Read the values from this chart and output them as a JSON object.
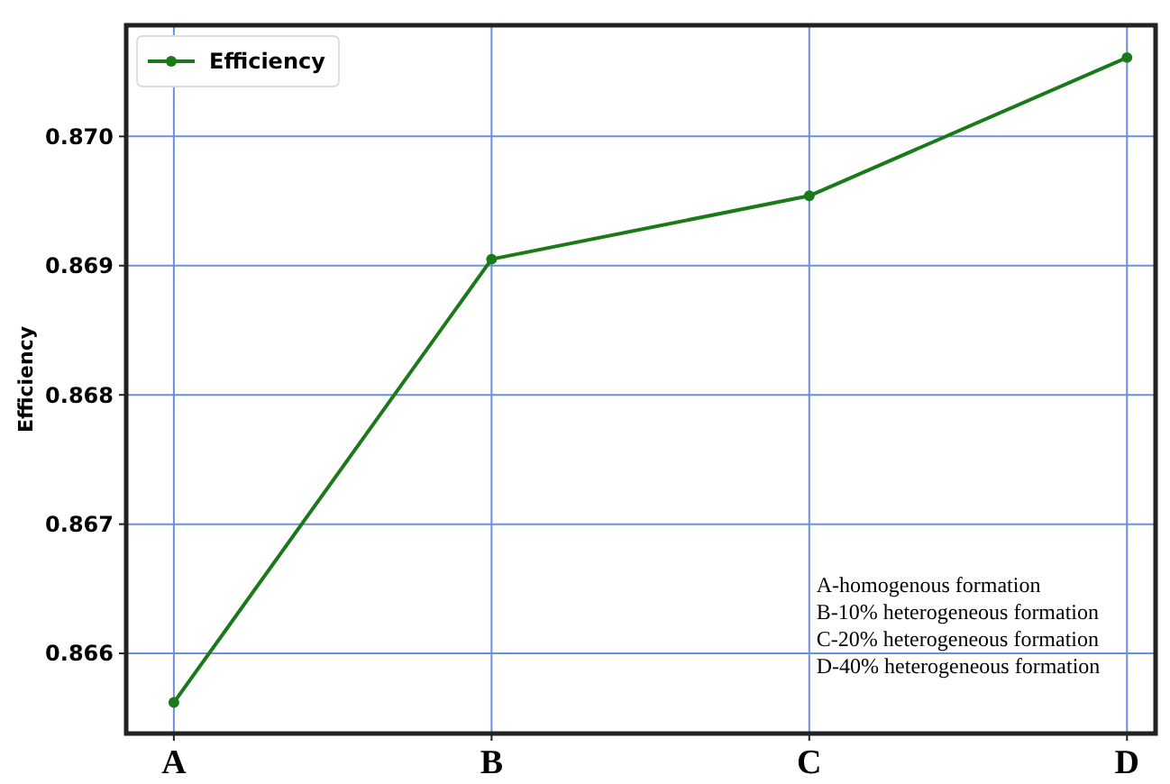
{
  "chart_data": {
    "type": "line",
    "ylabel": "Efficiency",
    "categories": [
      "A",
      "B",
      "C",
      "D"
    ],
    "series": [
      {
        "name": "Efficiency",
        "color": "#1a7a1a",
        "values": [
          0.86562,
          0.86905,
          0.86954,
          0.87061
        ]
      }
    ],
    "ylim": [
      0.86538,
      0.87086
    ],
    "yticks": [
      {
        "value": 0.866,
        "label": "0.866"
      },
      {
        "value": 0.867,
        "label": "0.867"
      },
      {
        "value": 0.868,
        "label": "0.868"
      },
      {
        "value": 0.869,
        "label": "0.869"
      },
      {
        "value": 0.87,
        "label": "0.870"
      }
    ],
    "grid": true,
    "legend": "top left",
    "marker": "circle",
    "line_style": "solid",
    "annotations": [
      "A-homogenous formation",
      "B-10% heterogeneous formation",
      "C-20% heterogeneous formation",
      "D-40% heterogeneous formation"
    ]
  }
}
